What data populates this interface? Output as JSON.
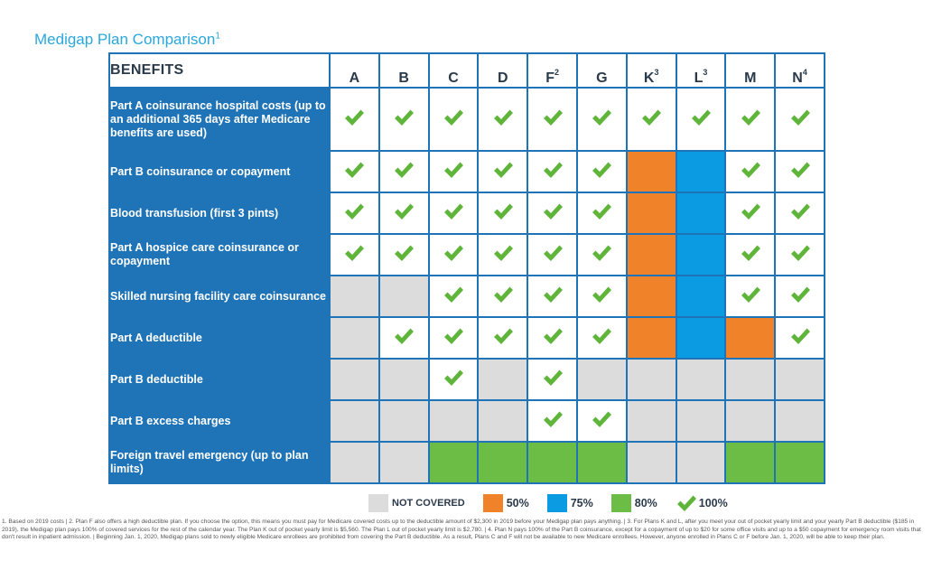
{
  "chart_data": {
    "type": "table",
    "title": "Medigap Plan Comparison",
    "title_sup": "1",
    "header_label": "BENEFITS",
    "plans": [
      {
        "name": "A",
        "sup": ""
      },
      {
        "name": "B",
        "sup": ""
      },
      {
        "name": "C",
        "sup": ""
      },
      {
        "name": "D",
        "sup": ""
      },
      {
        "name": "F",
        "sup": "2"
      },
      {
        "name": "G",
        "sup": ""
      },
      {
        "name": "K",
        "sup": "3"
      },
      {
        "name": "L",
        "sup": "3"
      },
      {
        "name": "M",
        "sup": ""
      },
      {
        "name": "N",
        "sup": "4"
      }
    ],
    "benefits": [
      {
        "label": "Part A coinsurance hospital costs (up to an additional 365 days after Medicare benefits are used)",
        "coverage": [
          "100",
          "100",
          "100",
          "100",
          "100",
          "100",
          "100",
          "100",
          "100",
          "100"
        ]
      },
      {
        "label": "Part B coinsurance or copayment",
        "coverage": [
          "100",
          "100",
          "100",
          "100",
          "100",
          "100",
          "50",
          "75",
          "100",
          "100"
        ]
      },
      {
        "label": "Blood transfusion (first 3 pints)",
        "coverage": [
          "100",
          "100",
          "100",
          "100",
          "100",
          "100",
          "50",
          "75",
          "100",
          "100"
        ]
      },
      {
        "label": "Part A hospice care coinsurance or copayment",
        "coverage": [
          "100",
          "100",
          "100",
          "100",
          "100",
          "100",
          "50",
          "75",
          "100",
          "100"
        ]
      },
      {
        "label": "Skilled nursing facility care coinsurance",
        "coverage": [
          "none",
          "none",
          "100",
          "100",
          "100",
          "100",
          "50",
          "75",
          "100",
          "100"
        ]
      },
      {
        "label": "Part A deductible",
        "coverage": [
          "none",
          "100",
          "100",
          "100",
          "100",
          "100",
          "50",
          "75",
          "50",
          "100"
        ]
      },
      {
        "label": "Part B deductible",
        "coverage": [
          "none",
          "none",
          "100",
          "none",
          "100",
          "none",
          "none",
          "none",
          "none",
          "none"
        ]
      },
      {
        "label": "Part B excess charges",
        "coverage": [
          "none",
          "none",
          "none",
          "none",
          "100",
          "100",
          "none",
          "none",
          "none",
          "none"
        ]
      },
      {
        "label": "Foreign travel emergency (up to plan limits)",
        "coverage": [
          "none",
          "none",
          "80",
          "80",
          "80",
          "80",
          "none",
          "none",
          "80",
          "80"
        ]
      }
    ],
    "legend": [
      {
        "key": "none",
        "label": "NOT COVERED"
      },
      {
        "key": "50",
        "label": "50%"
      },
      {
        "key": "75",
        "label": "75%"
      },
      {
        "key": "80",
        "label": "80%"
      },
      {
        "key": "100",
        "label": "100%"
      }
    ],
    "colors": {
      "none": "#dcdcdc",
      "50": "#f0832a",
      "75": "#0b9be3",
      "80": "#6cbd45",
      "check": "#5fb53a",
      "benefit_bg": "#1f73b7",
      "title": "#2aa7dc"
    }
  },
  "footnote": "1. Based on 2019 costs | 2. Plan F also offers a high deductible plan. If you choose the option, this means you must pay for Medicare covered costs up to the deductible amount of $2,300 in 2019 before your Medigap plan pays anything. | 3. For Plans K and L, after you meet your out of pocket yearly limit and your yearly Part B deductible ($185 in 2019), the Medigap plan pays 100% of covered services for the rest of the calendar year. The Plan K out of pocket yearly limit is $5,560. The Plan L out of pocket yearly limit is $2,780. | 4. Plan N pays 100% of the Part B coinsurance, except for a copayment of up to $20 for some office visits and up to a $50 copayment for emergency room visits that don't result in inpatient admission. | Beginning Jan. 1, 2020, Medigap plans sold to newly eligible Medicare enrollees are prohibited from covering the Part B deductible. As a result, Plans C and F will not be available to new Medicare enrollees. However, anyone enrolled in Plans C or F before Jan. 1, 2020, will be able to keep their plan."
}
